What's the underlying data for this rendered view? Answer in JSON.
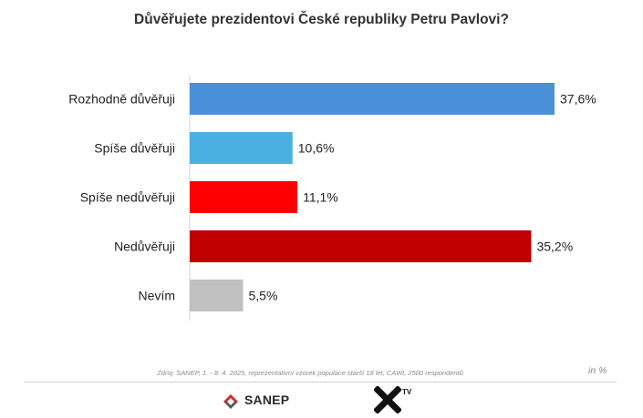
{
  "title": "Důvěřujete prezidentovi České republiky Petru Pavlovi?",
  "chart_data": {
    "type": "bar",
    "orientation": "horizontal",
    "categories": [
      "Rozhodně důvěřuji",
      "Spíše důvěřuji",
      "Spíše nedůvěřuji",
      "Nedůvěřuji",
      "Nevím"
    ],
    "values": [
      37.6,
      10.6,
      11.1,
      35.2,
      5.5
    ],
    "value_labels": [
      "37,6%",
      "10,6%",
      "11,1%",
      "35,2%",
      "5,5%"
    ],
    "colors": [
      "#4a90d9",
      "#4ab0e2",
      "#ff0000",
      "#c00000",
      "#c0c0c0"
    ],
    "xlim": [
      0,
      37.6
    ],
    "grid": false,
    "legend": "none"
  },
  "unit_note": "in %",
  "source": "Zdroj: SANEP, 1. - 8. 4. 2025, reprezentativní vzorek populace starší 18 let, CAWI, 2500 respondentů",
  "logos": {
    "sanep_text": "SANEP",
    "xtv_text": "TV"
  }
}
